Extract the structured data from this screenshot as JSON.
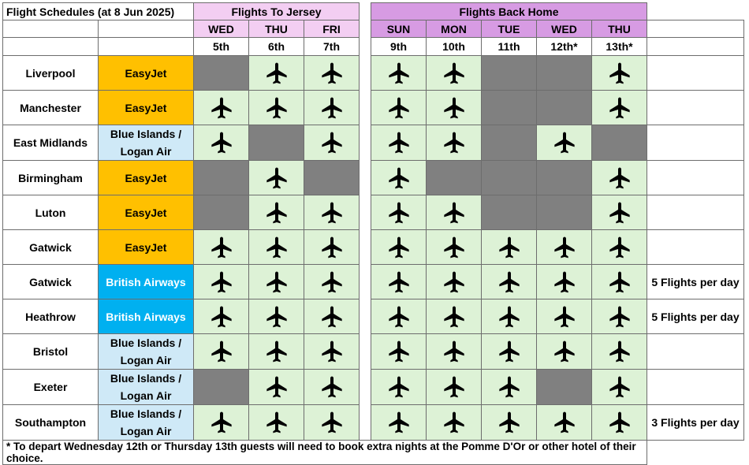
{
  "title": "Flight Schedules (at 8 Jun 2025)",
  "groups": {
    "to": "Flights To Jersey",
    "back": "Flights Back Home"
  },
  "days_to": [
    {
      "dow": "WED",
      "date": "5th"
    },
    {
      "dow": "THU",
      "date": "6th"
    },
    {
      "dow": "FRI",
      "date": "7th"
    }
  ],
  "days_back": [
    {
      "dow": "SUN",
      "date": "9th"
    },
    {
      "dow": "MON",
      "date": "10th"
    },
    {
      "dow": "TUE",
      "date": "11th"
    },
    {
      "dow": "WED",
      "date": "12th*"
    },
    {
      "dow": "THU",
      "date": "13th*"
    }
  ],
  "legend": {
    "flight": "airplane-icon",
    "no_flight": "grey cell"
  },
  "colors": {
    "easyjet": "#ffc000",
    "blue_islands": "#cfe9f7",
    "british_airways": "#00b0f0",
    "flight_cell": "#ddf2d6",
    "no_flight_cell": "#808080",
    "to_header": "#f3cef2",
    "back_header": "#d79be3"
  },
  "rows": [
    {
      "airport": "Liverpool",
      "airline": [
        "EasyJet"
      ],
      "airline_type": "orange",
      "to": [
        0,
        1,
        1
      ],
      "back": [
        1,
        1,
        0,
        0,
        1
      ],
      "note": ""
    },
    {
      "airport": "Manchester",
      "airline": [
        "EasyJet"
      ],
      "airline_type": "orange",
      "to": [
        1,
        1,
        1
      ],
      "back": [
        1,
        1,
        0,
        0,
        1
      ],
      "note": ""
    },
    {
      "airport": "East Midlands",
      "airline": [
        "Blue Islands /",
        "Logan Air"
      ],
      "airline_type": "lblue",
      "to": [
        1,
        0,
        1
      ],
      "back": [
        1,
        1,
        0,
        1,
        0
      ],
      "note": ""
    },
    {
      "airport": "Birmingham",
      "airline": [
        "EasyJet"
      ],
      "airline_type": "orange",
      "to": [
        0,
        1,
        0
      ],
      "back": [
        1,
        0,
        0,
        0,
        1
      ],
      "note": ""
    },
    {
      "airport": "Luton",
      "airline": [
        "EasyJet"
      ],
      "airline_type": "orange",
      "to": [
        0,
        1,
        1
      ],
      "back": [
        1,
        1,
        0,
        0,
        1
      ],
      "note": ""
    },
    {
      "airport": "Gatwick",
      "airline": [
        "EasyJet"
      ],
      "airline_type": "orange",
      "to": [
        1,
        1,
        1
      ],
      "back": [
        1,
        1,
        1,
        1,
        1
      ],
      "note": ""
    },
    {
      "airport": "Gatwick",
      "airline": [
        "British Airways"
      ],
      "airline_type": "blue",
      "to": [
        1,
        1,
        1
      ],
      "back": [
        1,
        1,
        1,
        1,
        1
      ],
      "note": "5 Flights per day"
    },
    {
      "airport": "Heathrow",
      "airline": [
        "British Airways"
      ],
      "airline_type": "blue",
      "to": [
        1,
        1,
        1
      ],
      "back": [
        1,
        1,
        1,
        1,
        1
      ],
      "note": "5 Flights per day"
    },
    {
      "airport": "Bristol",
      "airline": [
        "Blue Islands /",
        "Logan Air"
      ],
      "airline_type": "lblue",
      "to": [
        1,
        1,
        1
      ],
      "back": [
        1,
        1,
        1,
        1,
        1
      ],
      "note": ""
    },
    {
      "airport": "Exeter",
      "airline": [
        "Blue Islands /",
        "Logan Air"
      ],
      "airline_type": "lblue",
      "to": [
        0,
        1,
        1
      ],
      "back": [
        1,
        1,
        1,
        0,
        1
      ],
      "note": ""
    },
    {
      "airport": "Southampton",
      "airline": [
        "Blue Islands /",
        "Logan Air"
      ],
      "airline_type": "lblue",
      "to": [
        1,
        1,
        1
      ],
      "back": [
        1,
        1,
        1,
        1,
        1
      ],
      "note": "3 Flights per day"
    }
  ],
  "footnote": "* To depart Wednesday 12th or Thursday 13th guests will need to book extra nights at the Pomme D'Or or other hotel of their choice."
}
